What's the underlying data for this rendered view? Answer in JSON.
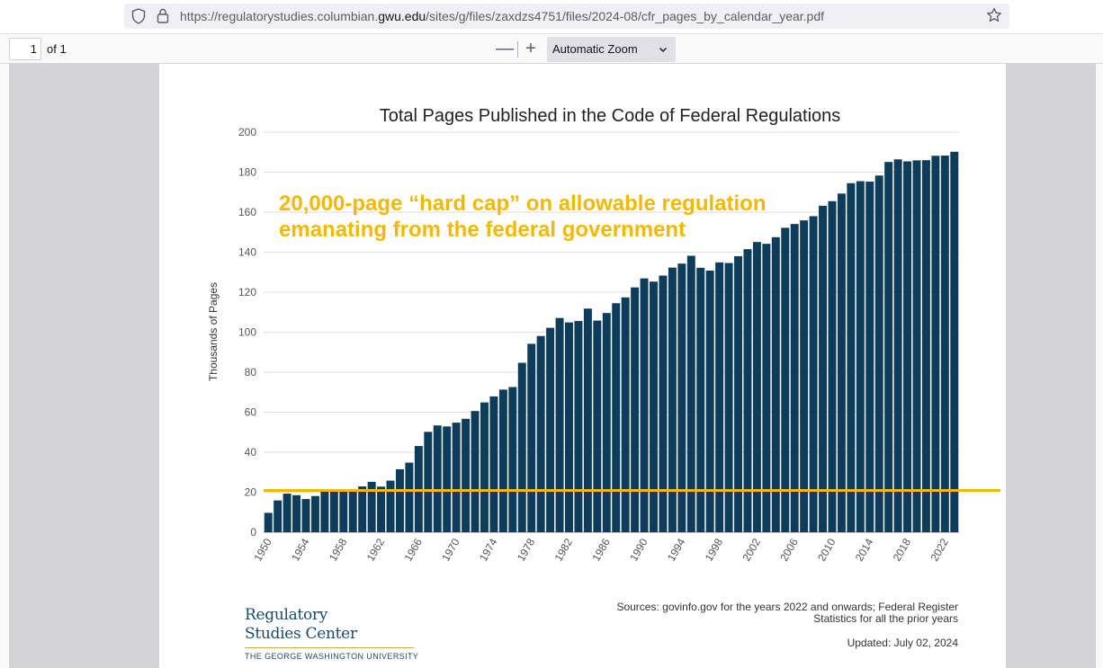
{
  "browser": {
    "url_prefix": "https://regulatorystudies.columbian.",
    "url_domain": "gwu.edu",
    "url_suffix": "/sites/g/files/zaxdzs4751/files/2024-08/cfr_pages_by_calendar_year.pdf"
  },
  "pdf_toolbar": {
    "page_number": "1",
    "page_of": "of 1",
    "zoom_out": "—",
    "zoom_in": "+",
    "zoom_level": "Automatic Zoom"
  },
  "annotation": {
    "line1": "20,000-page “hard cap” on allowable regulation",
    "line2": "emanating from the federal government",
    "cap_value": 20,
    "color": "#f5b800"
  },
  "footer": {
    "logo_line1": "Regulatory",
    "logo_line2": "Studies Center",
    "logo_university": "THE GEORGE WASHINGTON UNIVERSITY",
    "sources_line1": "Sources: govinfo.gov for the years 2022 and onwards; Federal Register",
    "sources_line2": "Statistics for all the prior years",
    "updated": "Updated: July 02, 2024"
  },
  "chart_data": {
    "type": "bar",
    "title": "Total Pages Published in the Code of Federal Regulations",
    "ylabel": "Thousands of Pages",
    "xlabel": "",
    "ylim": [
      0,
      200
    ],
    "yticks": [
      0,
      20,
      40,
      60,
      80,
      100,
      120,
      140,
      160,
      180,
      200
    ],
    "xtick_labels": [
      "1950",
      "1954",
      "1958",
      "1962",
      "1966",
      "1970",
      "1974",
      "1978",
      "1982",
      "1986",
      "1990",
      "1994",
      "1998",
      "2002",
      "2006",
      "2010",
      "2014",
      "2018",
      "2022"
    ],
    "bar_color": "#0e3d5c",
    "grid": true,
    "categories": [
      "1950",
      "1951",
      "1952",
      "1953",
      "1954",
      "1955",
      "1956",
      "1957",
      "1958",
      "1959",
      "1960",
      "1961",
      "1962",
      "1963",
      "1964",
      "1965",
      "1966",
      "1967",
      "1968",
      "1969",
      "1970",
      "1971",
      "1972",
      "1973",
      "1974",
      "1975",
      "1976",
      "1977",
      "1978",
      "1979",
      "1980",
      "1981",
      "1982",
      "1983",
      "1984",
      "1985",
      "1986",
      "1987",
      "1988",
      "1989",
      "1990",
      "1991",
      "1992",
      "1993",
      "1994",
      "1995",
      "1996",
      "1997",
      "1998",
      "1999",
      "2000",
      "2001",
      "2002",
      "2003",
      "2004",
      "2005",
      "2006",
      "2007",
      "2008",
      "2009",
      "2010",
      "2011",
      "2012",
      "2013",
      "2014",
      "2015",
      "2016",
      "2017",
      "2018",
      "2019",
      "2020",
      "2021",
      "2022",
      "2023"
    ],
    "values": [
      9.7,
      15.9,
      19.3,
      18.5,
      16.6,
      18.1,
      21.5,
      20.3,
      20.6,
      21.6,
      22.9,
      25.2,
      22.8,
      25.8,
      31.5,
      34.8,
      43.1,
      50.2,
      53.4,
      52.9,
      54.8,
      56.7,
      60.6,
      64.9,
      67.9,
      71.3,
      72.6,
      84.7,
      94.2,
      98.1,
      102.2,
      107.1,
      104.9,
      105.6,
      111.8,
      105.8,
      109.6,
      114.5,
      117.4,
      122.4,
      126.9,
      125.3,
      128.3,
      132.3,
      134.3,
      138.2,
      132.2,
      130.8,
      134.9,
      134.6,
      138.0,
      141.5,
      145.1,
      144.2,
      147.5,
      152.2,
      154.1,
      155.9,
      158.0,
      163.2,
      165.5,
      169.3,
      174.5,
      175.5,
      175.3,
      178.3,
      185.1,
      186.4,
      185.4,
      185.9,
      186.0,
      188.2,
      188.3,
      190.2
    ]
  }
}
